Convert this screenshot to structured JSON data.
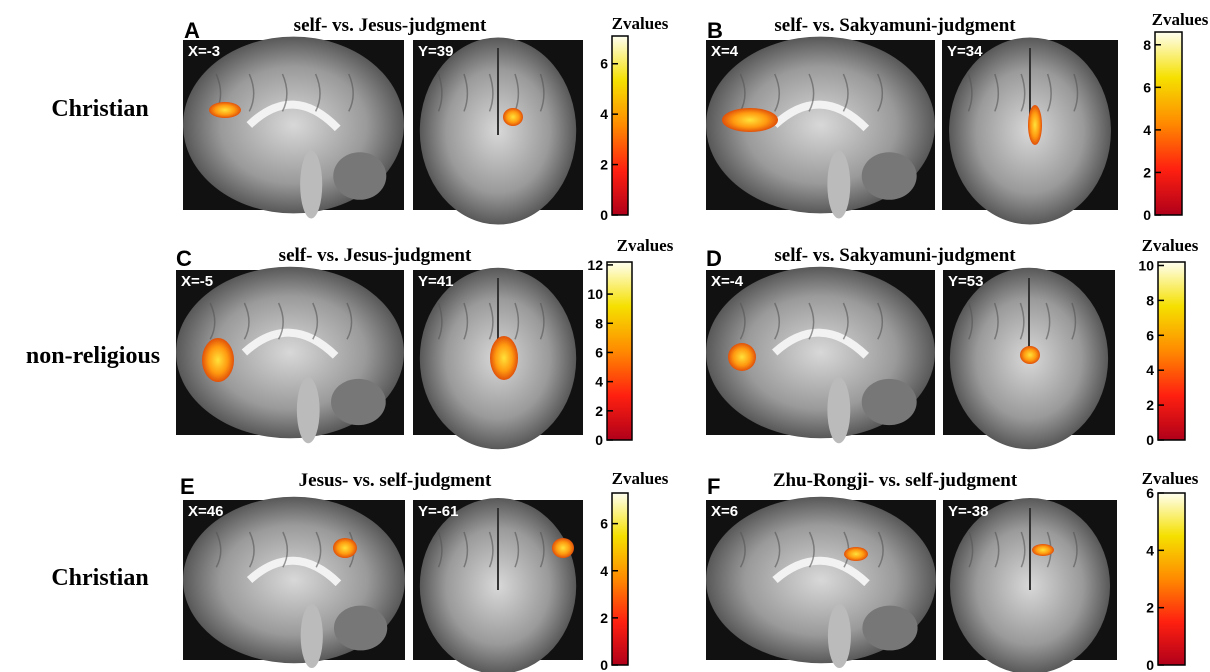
{
  "row_labels": [
    "Christian",
    "non-religious",
    "Christian"
  ],
  "panels": [
    {
      "letter": "A",
      "title": "self- vs. Jesus-judgment",
      "slices": [
        "X=-3",
        "Y=39"
      ],
      "colorbar": {
        "title": "Zvalues",
        "lim": [
          0,
          7.1
        ],
        "ticks": [
          0,
          2,
          4,
          6
        ]
      }
    },
    {
      "letter": "B",
      "title": "self- vs. Sakyamuni-judgment",
      "slices": [
        "X=4",
        "Y=34"
      ],
      "colorbar": {
        "title": "Zvalues",
        "lim": [
          0,
          8.6
        ],
        "ticks": [
          0,
          2,
          4,
          6,
          8
        ]
      }
    },
    {
      "letter": "C",
      "title": "self- vs. Jesus-judgment",
      "slices": [
        "X=-5",
        "Y=41"
      ],
      "colorbar": {
        "title": "Zvalues",
        "lim": [
          0,
          12.2
        ],
        "ticks": [
          0,
          2,
          4,
          6,
          8,
          10,
          12
        ]
      }
    },
    {
      "letter": "D",
      "title": "self- vs. Sakyamuni-judgment",
      "slices": [
        "X=-4",
        "Y=53"
      ],
      "colorbar": {
        "title": "Zvalues",
        "lim": [
          0,
          10.2
        ],
        "ticks": [
          0,
          2,
          4,
          6,
          8,
          10
        ]
      }
    },
    {
      "letter": "E",
      "title": "Jesus-  vs. self-judgment",
      "slices": [
        "X=46",
        "Y=-61"
      ],
      "colorbar": {
        "title": "Zvalues",
        "lim": [
          0,
          7.3
        ],
        "ticks": [
          0,
          2,
          4,
          6
        ]
      }
    },
    {
      "letter": "F",
      "title": "Zhu-Rongji- vs. self-judgment",
      "slices": [
        "X=6",
        "Y=-38"
      ],
      "colorbar": {
        "title": "Zvalues",
        "lim": [
          0,
          6
        ],
        "ticks": [
          0,
          2,
          4,
          6
        ]
      }
    }
  ]
}
